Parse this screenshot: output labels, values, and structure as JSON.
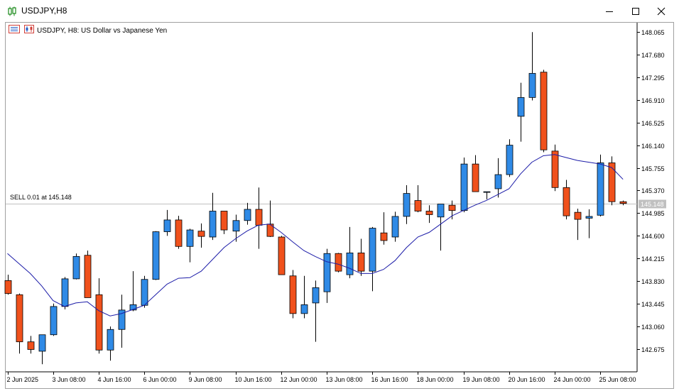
{
  "window": {
    "title": "USDJPY,H8",
    "icon": "candlestick-chart-icon",
    "controls": [
      "minimize-icon",
      "maximize-icon",
      "close-icon"
    ]
  },
  "header": {
    "icons": [
      "list-icon",
      "chart-icon"
    ],
    "description": "USDJPY, H8:  US Dollar vs Japanese Yen"
  },
  "trade_line": {
    "label": "SELL 0.01 at 145.148",
    "price": 145.148,
    "price_label": "145.148"
  },
  "colors": {
    "bull": "#2f8ae6",
    "bear": "#f0511c",
    "candle_outline": "#000000",
    "ma_line": "#1c1ca8",
    "trade_line": "#c0c0c0",
    "price_tag_bg": "#c0c0c0"
  },
  "chart_data": {
    "type": "candlestick",
    "symbol": "USDJPY",
    "timeframe": "H8",
    "ylim": [
      142.29,
      148.22
    ],
    "yticks": [
      "148.065",
      "147.680",
      "147.295",
      "146.910",
      "146.525",
      "146.140",
      "145.755",
      "145.370",
      "144.985",
      "144.600",
      "144.215",
      "143.830",
      "143.445",
      "143.060",
      "142.675"
    ],
    "xticks": [
      {
        "i": 0,
        "label": "2 Jun 2025"
      },
      {
        "i": 4,
        "label": "3 Jun 08:00"
      },
      {
        "i": 8,
        "label": "4 Jun 16:00"
      },
      {
        "i": 12,
        "label": "6 Jun 00:00"
      },
      {
        "i": 16,
        "label": "9 Jun 08:00"
      },
      {
        "i": 20,
        "label": "10 Jun 16:00"
      },
      {
        "i": 24,
        "label": "12 Jun 00:00"
      },
      {
        "i": 28,
        "label": "13 Jun 08:00"
      },
      {
        "i": 32,
        "label": "16 Jun 16:00"
      },
      {
        "i": 36,
        "label": "18 Jun 00:00"
      },
      {
        "i": 40,
        "label": "19 Jun 08:00"
      },
      {
        "i": 44,
        "label": "20 Jun 16:00"
      },
      {
        "i": 48,
        "label": "24 Jun 00:00"
      },
      {
        "i": 52,
        "label": "25 Jun 08:00"
      }
    ],
    "candles": [
      [
        143.84,
        143.94,
        143.6,
        143.62
      ],
      [
        143.6,
        143.62,
        142.6,
        142.8
      ],
      [
        142.8,
        142.9,
        142.6,
        142.67
      ],
      [
        142.64,
        142.9,
        142.42,
        142.92
      ],
      [
        142.92,
        143.45,
        142.9,
        143.4
      ],
      [
        143.4,
        143.9,
        143.35,
        143.87
      ],
      [
        143.87,
        144.3,
        143.86,
        144.25
      ],
      [
        144.27,
        144.35,
        143.55,
        143.55
      ],
      [
        143.6,
        143.88,
        142.6,
        142.66
      ],
      [
        142.66,
        143.06,
        142.48,
        143.01
      ],
      [
        143.01,
        143.6,
        142.7,
        143.34
      ],
      [
        143.34,
        144.0,
        143.32,
        143.43
      ],
      [
        143.42,
        143.92,
        143.38,
        143.86
      ],
      [
        143.86,
        144.68,
        143.85,
        144.67
      ],
      [
        144.67,
        145.04,
        144.6,
        144.87
      ],
      [
        144.87,
        144.94,
        144.38,
        144.42
      ],
      [
        144.42,
        144.72,
        144.15,
        144.7
      ],
      [
        144.68,
        144.81,
        144.4,
        144.59
      ],
      [
        144.58,
        145.33,
        144.53,
        145.02
      ],
      [
        145.02,
        145.02,
        144.63,
        144.7
      ],
      [
        144.68,
        144.96,
        144.5,
        144.86
      ],
      [
        144.86,
        145.16,
        144.79,
        145.05
      ],
      [
        145.05,
        145.42,
        144.38,
        144.78
      ],
      [
        144.8,
        145.2,
        144.58,
        144.59
      ],
      [
        144.58,
        144.6,
        143.94,
        143.94
      ],
      [
        143.92,
        144.02,
        143.2,
        143.28
      ],
      [
        143.28,
        143.92,
        143.2,
        143.43
      ],
      [
        143.46,
        143.84,
        142.8,
        143.72
      ],
      [
        143.65,
        144.38,
        143.46,
        144.3
      ],
      [
        144.3,
        144.31,
        143.98,
        144.0
      ],
      [
        143.94,
        144.75,
        143.88,
        144.31
      ],
      [
        144.31,
        144.55,
        143.92,
        144.0
      ],
      [
        144.0,
        144.75,
        143.66,
        144.73
      ],
      [
        144.65,
        145.0,
        144.45,
        144.52
      ],
      [
        144.58,
        145.01,
        144.5,
        144.93
      ],
      [
        144.93,
        145.46,
        144.8,
        145.32
      ],
      [
        145.2,
        145.46,
        145.0,
        145.02
      ],
      [
        145.02,
        145.12,
        144.82,
        144.96
      ],
      [
        144.92,
        145.14,
        144.35,
        145.14
      ],
      [
        145.12,
        145.2,
        144.88,
        145.03
      ],
      [
        145.03,
        145.93,
        145.0,
        145.82
      ],
      [
        145.82,
        145.97,
        145.35,
        145.35
      ],
      [
        145.35,
        145.35,
        145.22,
        145.35
      ],
      [
        145.4,
        145.92,
        145.25,
        145.64
      ],
      [
        145.64,
        146.24,
        145.6,
        146.14
      ],
      [
        146.63,
        147.2,
        146.2,
        146.95
      ],
      [
        146.95,
        148.06,
        146.9,
        147.36
      ],
      [
        147.38,
        147.42,
        146.02,
        146.06
      ],
      [
        146.04,
        146.15,
        145.36,
        145.42
      ],
      [
        145.42,
        145.55,
        144.88,
        144.94
      ],
      [
        145.0,
        145.06,
        144.53,
        144.88
      ],
      [
        144.9,
        145.05,
        144.56,
        144.93
      ],
      [
        144.95,
        145.98,
        144.93,
        145.84
      ],
      [
        145.84,
        145.95,
        145.12,
        145.18
      ],
      [
        145.18,
        145.2,
        145.12,
        145.15
      ]
    ],
    "ma": [
      [
        0,
        144.3
      ],
      [
        2,
        143.96
      ],
      [
        3,
        143.75
      ],
      [
        4,
        143.5
      ],
      [
        5,
        143.4
      ],
      [
        6,
        143.46
      ],
      [
        7,
        143.48
      ],
      [
        8,
        143.33
      ],
      [
        9,
        143.24
      ],
      [
        10,
        143.28
      ],
      [
        11,
        143.35
      ],
      [
        12,
        143.42
      ],
      [
        13,
        143.6
      ],
      [
        14,
        143.78
      ],
      [
        15,
        143.88
      ],
      [
        16,
        143.89
      ],
      [
        17,
        144.0
      ],
      [
        18,
        144.2
      ],
      [
        19,
        144.4
      ],
      [
        20,
        144.55
      ],
      [
        21,
        144.68
      ],
      [
        22,
        144.78
      ],
      [
        23,
        144.8
      ],
      [
        24,
        144.66
      ],
      [
        25,
        144.5
      ],
      [
        26,
        144.35
      ],
      [
        27,
        144.25
      ],
      [
        28,
        144.16
      ],
      [
        29,
        144.12
      ],
      [
        30,
        144.05
      ],
      [
        31,
        143.96
      ],
      [
        32,
        143.96
      ],
      [
        33,
        144.03
      ],
      [
        34,
        144.18
      ],
      [
        35,
        144.4
      ],
      [
        36,
        144.58
      ],
      [
        37,
        144.66
      ],
      [
        38,
        144.8
      ],
      [
        39,
        144.94
      ],
      [
        40,
        145.03
      ],
      [
        41,
        145.12
      ],
      [
        42,
        145.2
      ],
      [
        43,
        145.3
      ],
      [
        44,
        145.4
      ],
      [
        45,
        145.65
      ],
      [
        46,
        145.85
      ],
      [
        47,
        145.96
      ],
      [
        48,
        145.98
      ],
      [
        49,
        145.93
      ],
      [
        50,
        145.88
      ],
      [
        51,
        145.85
      ],
      [
        52,
        145.82
      ],
      [
        53,
        145.76
      ],
      [
        54,
        145.56
      ]
    ]
  }
}
